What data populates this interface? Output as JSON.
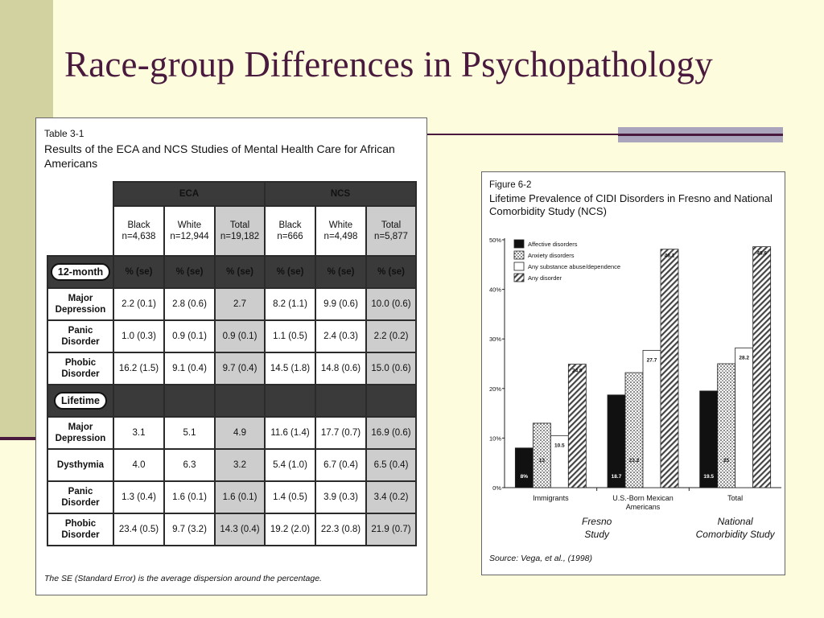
{
  "slide": {
    "title": "Race-group Differences in Psychopathology"
  },
  "table": {
    "label": "Table 3-1",
    "title": "Results of the ECA and NCS Studies of Mental Health Care for African Americans",
    "groups": [
      "ECA",
      "NCS"
    ],
    "columns": [
      {
        "name": "Black",
        "n": "n=4,638"
      },
      {
        "name": "White",
        "n": "n=12,944"
      },
      {
        "name": "Total",
        "n": "n=19,182"
      },
      {
        "name": "Black",
        "n": "n=666"
      },
      {
        "name": "White",
        "n": "n=4,498"
      },
      {
        "name": "Total",
        "n": "n=5,877"
      }
    ],
    "section_12month": {
      "label": "12-month",
      "header": [
        "% (se)",
        "% (se)",
        "% (se)",
        "% (se)",
        "% (se)",
        "% (se)"
      ],
      "rows": [
        {
          "label": "Major Depression",
          "cells": [
            "2.2 (0.1)",
            "2.8 (0.6)",
            "2.7",
            "8.2 (1.1)",
            "9.9 (0.6)",
            "10.0 (0.6)"
          ]
        },
        {
          "label": "Panic Disorder",
          "cells": [
            "1.0 (0.3)",
            "0.9 (0.1)",
            "0.9 (0.1)",
            "1.1 (0.5)",
            "2.4 (0.3)",
            "2.2 (0.2)"
          ]
        },
        {
          "label": "Phobic Disorder",
          "cells": [
            "16.2 (1.5)",
            "9.1 (0.4)",
            "9.7 (0.4)",
            "14.5 (1.8)",
            "14.8 (0.6)",
            "15.0 (0.6)"
          ]
        }
      ]
    },
    "section_lifetime": {
      "label": "Lifetime",
      "rows": [
        {
          "label": "Major Depression",
          "cells": [
            "3.1",
            "5.1",
            "4.9",
            "11.6 (1.4)",
            "17.7 (0.7)",
            "16.9 (0.6)"
          ]
        },
        {
          "label": "Dysthymia",
          "cells": [
            "4.0",
            "6.3",
            "3.2",
            "5.4 (1.0)",
            "6.7 (0.4)",
            "6.5 (0.4)"
          ]
        },
        {
          "label": "Panic Disorder",
          "cells": [
            "1.3 (0.4)",
            "1.6 (0.1)",
            "1.6 (0.1)",
            "1.4 (0.5)",
            "3.9 (0.3)",
            "3.4 (0.2)"
          ]
        },
        {
          "label": "Phobic Disorder",
          "cells": [
            "23.4 (0.5)",
            "9.7 (3.2)",
            "14.3 (0.4)",
            "19.2 (2.0)",
            "22.3 (0.8)",
            "21.9 (0.7)"
          ]
        }
      ]
    },
    "footnote": "The SE (Standard Error) is the average dispersion around the percentage."
  },
  "figure": {
    "label": "Figure 6-2",
    "title": "Lifetime Prevalence of CIDI Disorders in Fresno and National Comorbidity Study (NCS)",
    "source": "Source: Vega, et al., (1998)",
    "group_labels": [
      {
        "text": "Fresno Study"
      },
      {
        "text": "National Comorbidity Study"
      }
    ]
  },
  "chart_data": {
    "type": "bar",
    "title": "Lifetime Prevalence of CIDI Disorders in Fresno and National Comorbidity Study (NCS)",
    "categories": [
      "Immigrants",
      "U.S.-Born Mexican Americans",
      "Total"
    ],
    "ylim": [
      0,
      50
    ],
    "yticks": [
      0,
      10,
      20,
      30,
      40,
      50
    ],
    "ytick_labels": [
      "0%",
      "10%",
      "20%",
      "30%",
      "40%",
      "50%"
    ],
    "legend": "top-left",
    "series": [
      {
        "name": "Affective disorders",
        "pattern": "solid-black",
        "values": [
          8.0,
          18.7,
          19.5
        ],
        "labels": [
          "8%",
          "18.7",
          "19.5"
        ]
      },
      {
        "name": "Anxiety disorders",
        "pattern": "dots",
        "values": [
          13.0,
          23.2,
          25.0
        ],
        "labels": [
          "13",
          "23.2",
          "25"
        ]
      },
      {
        "name": "Any substance abuse/dependence",
        "pattern": "white",
        "values": [
          10.5,
          27.7,
          28.2
        ],
        "labels": [
          "10.5",
          "27.7",
          "28.2"
        ]
      },
      {
        "name": "Any disorder",
        "pattern": "hatch",
        "values": [
          24.9,
          48.1,
          48.6
        ],
        "labels": [
          "24.9",
          "48.1",
          "48.6"
        ]
      }
    ]
  }
}
